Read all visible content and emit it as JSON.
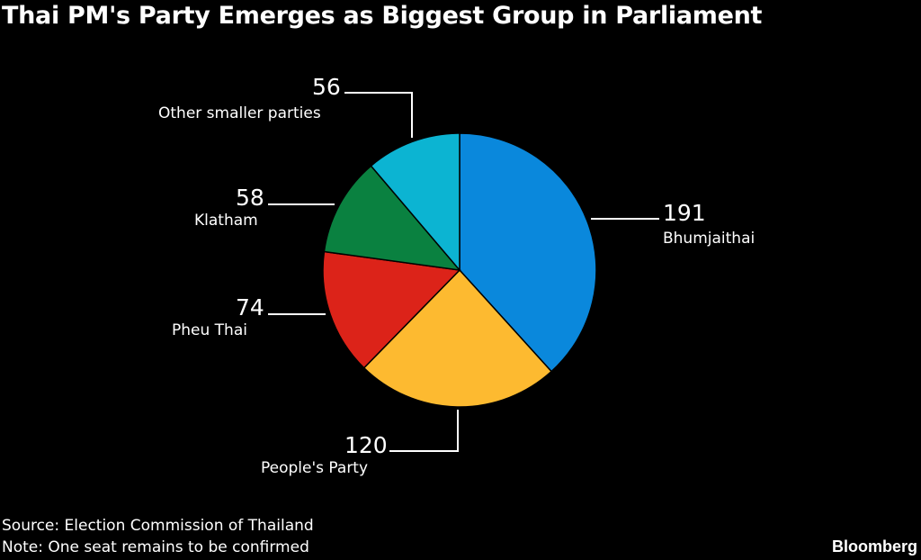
{
  "chart_data": {
    "type": "pie",
    "title": "Thai PM's Party Emerges as Biggest Group in Parliament",
    "start": "12 o'clock, clockwise",
    "slices": [
      {
        "label": "Bhumjaithai",
        "value": 191,
        "display": "191",
        "color": "#0a88dc"
      },
      {
        "label": "People's Party",
        "value": 120,
        "display": "120",
        "color": "#fdba30"
      },
      {
        "label": "Pheu Thai",
        "value": 74,
        "display": "74",
        "color": "#dc2319"
      },
      {
        "label": "Klatham",
        "value": 58,
        "display": "58",
        "color": "#0a8140"
      },
      {
        "label": "Other smaller parties",
        "value": 56,
        "display": "56",
        "color": "#0cb4d2"
      }
    ]
  },
  "footer": {
    "source": "Source: Election Commission of Thailand",
    "note": "Note: One seat remains to be confirmed",
    "brand": "Bloomberg"
  }
}
